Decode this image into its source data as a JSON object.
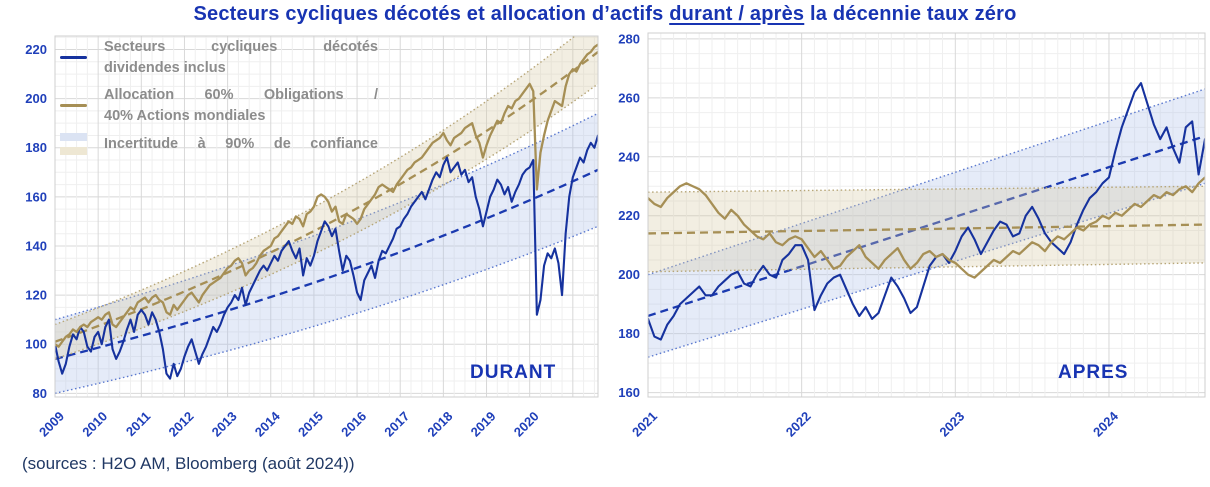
{
  "title": {
    "prefix": "Secteurs cycliques décotés et allocation d’actifs ",
    "underlined": "durant / après",
    "suffix": " la décennie taux zéro"
  },
  "source": "(sources : H2O AM, Bloomberg (août 2024))",
  "colors": {
    "accent_blue": "#1834b2",
    "series_blue": "#16329e",
    "series_gold": "#a68f55",
    "band_blue_fill": "rgba(170,188,232,0.30)",
    "band_blue_edge": "#5b79cf",
    "band_gold_fill": "rgba(216,202,166,0.32)",
    "band_gold_edge": "#b7a678",
    "legend_text": "#8c8c8c",
    "source_text": "#203864"
  },
  "legend": {
    "items": [
      {
        "marker": "line",
        "color": "#16329e",
        "line1": "Secteurs cycliques décotés",
        "line2": "dividendes inclus"
      },
      {
        "marker": "line",
        "color": "#a68f55",
        "line1": "Allocation 60% Obligations /",
        "line2": "40% Actions mondiales"
      },
      {
        "marker": "bands",
        "colors": [
          "#dbe3f3",
          "#eee7d3"
        ],
        "line1": "Incertitude à 90% de confiance",
        "line2": ""
      }
    ]
  },
  "chart_data": [
    {
      "type": "line",
      "panel_label": "DURANT",
      "x_start_year": 2009,
      "points_per_year": 12,
      "minor_x_step": 3,
      "minor_y_step": 5,
      "xticks": [
        2009,
        2010,
        2011,
        2012,
        2013,
        2014,
        2015,
        2016,
        2017,
        2018,
        2019,
        2020
      ],
      "yticks": [
        80,
        100,
        120,
        140,
        160,
        180,
        200,
        220
      ],
      "ylim": [
        78.5,
        225.5
      ],
      "series": [
        {
          "name": "Secteurs cycliques décotés dividendes inclus",
          "color": "#16329e",
          "width": 2.1,
          "values": [
            100,
            93,
            88,
            92,
            99,
            104,
            102,
            107,
            105,
            99,
            97,
            103,
            105,
            100,
            107,
            110,
            98,
            94,
            97,
            101,
            106,
            110,
            105,
            112,
            114,
            112,
            108,
            113,
            110,
            105,
            98,
            88,
            86,
            92,
            87,
            90,
            95,
            99,
            102,
            97,
            92,
            96,
            99,
            103,
            107,
            105,
            108,
            112,
            115,
            117,
            120,
            118,
            123,
            116,
            121,
            124,
            127,
            130,
            132,
            130,
            133,
            136,
            134,
            138,
            140,
            142,
            138,
            135,
            139,
            128,
            135,
            132,
            136,
            142,
            146,
            150,
            148,
            144,
            147,
            138,
            130,
            136,
            134,
            128,
            121,
            118,
            126,
            129,
            132,
            127,
            134,
            138,
            137,
            140,
            143,
            147,
            148,
            151,
            153,
            156,
            158,
            160,
            162,
            159,
            163,
            167,
            170,
            168,
            173,
            176,
            170,
            172,
            174,
            169,
            171,
            166,
            168,
            160,
            155,
            148,
            154,
            160,
            163,
            167,
            165,
            161,
            164,
            158,
            162,
            165,
            169,
            171,
            172,
            175,
            112,
            118,
            132,
            137,
            135,
            139,
            133,
            120,
            145,
            160,
            168,
            172,
            176,
            174,
            179,
            182,
            180,
            185
          ]
        },
        {
          "name": "Allocation 60% Obligations / 40% Actions mondiales",
          "color": "#a68f55",
          "width": 2.3,
          "values": [
            100,
            99,
            101,
            103,
            104,
            106,
            105,
            107,
            108,
            107,
            109,
            110,
            111,
            110,
            112,
            113,
            108,
            107,
            109,
            111,
            113,
            115,
            114,
            117,
            118,
            119,
            117,
            119,
            120,
            118,
            117,
            113,
            112,
            116,
            114,
            116,
            118,
            120,
            121,
            119,
            117,
            120,
            122,
            124,
            125,
            126,
            127,
            129,
            131,
            132,
            134,
            135,
            133,
            128,
            130,
            131,
            133,
            136,
            138,
            139,
            140,
            143,
            144,
            146,
            148,
            150,
            149,
            152,
            151,
            148,
            153,
            154,
            156,
            160,
            161,
            160,
            158,
            154,
            156,
            150,
            149,
            153,
            152,
            151,
            149,
            151,
            155,
            157,
            159,
            161,
            164,
            165,
            164,
            163,
            162,
            165,
            167,
            169,
            171,
            172,
            174,
            175,
            176,
            178,
            180,
            182,
            183,
            184,
            186,
            183,
            181,
            184,
            185,
            186,
            188,
            189,
            190,
            185,
            182,
            176,
            181,
            185,
            188,
            191,
            190,
            194,
            197,
            196,
            199,
            200,
            202,
            204,
            206,
            203,
            163,
            178,
            185,
            191,
            195,
            199,
            198,
            197,
            205,
            210,
            212,
            211,
            214,
            216,
            218,
            219,
            221,
            222
          ]
        }
      ],
      "bands": [
        {
          "name": "incertitude-90-secteurs",
          "interp": "exp",
          "fill": "rgba(170,188,232,0.30)",
          "edge": "#5b79cf",
          "center_color": "#1b3ab0",
          "center": [
            94,
            171
          ],
          "upper": [
            110,
            194
          ],
          "lower": [
            80,
            148
          ]
        },
        {
          "name": "incertitude-90-allocation",
          "interp": "exp",
          "fill": "rgba(216,202,166,0.32)",
          "edge": "#b7a678",
          "center_color": "#a68f55",
          "center": [
            101,
            219
          ],
          "upper": [
            108,
            233
          ],
          "lower": [
            94,
            206
          ]
        }
      ]
    },
    {
      "type": "line",
      "panel_label": "APRES",
      "x_start_year": 2021,
      "points_per_year": 24,
      "minor_x_step": 2,
      "minor_y_step": 5,
      "xticks": [
        2021,
        2022,
        2023,
        2024
      ],
      "yticks": [
        160,
        180,
        200,
        220,
        240,
        260,
        280
      ],
      "ylim": [
        158.5,
        282
      ],
      "series": [
        {
          "name": "Secteurs cycliques décotés dividendes inclus",
          "color": "#16329e",
          "width": 2.1,
          "values": [
            185,
            179,
            178,
            183,
            186,
            190,
            192,
            194,
            196,
            193,
            193,
            196,
            198,
            200,
            201,
            197,
            196,
            200,
            203,
            200,
            199,
            205,
            207,
            210,
            210,
            205,
            188,
            193,
            197,
            199,
            200,
            195,
            190,
            186,
            189,
            185,
            187,
            193,
            199,
            196,
            192,
            187,
            189,
            196,
            203,
            206,
            207,
            204,
            208,
            213,
            216,
            212,
            207,
            211,
            215,
            218,
            217,
            213,
            214,
            220,
            223,
            219,
            214,
            211,
            209,
            207,
            211,
            217,
            222,
            226,
            228,
            231,
            233,
            242,
            250,
            256,
            262,
            265,
            258,
            251,
            246,
            250,
            243,
            238,
            250,
            252,
            234,
            246
          ]
        },
        {
          "name": "Allocation 60% Obligations / 40% Actions mondiales",
          "color": "#a68f55",
          "width": 2.3,
          "values": [
            226,
            224,
            223,
            226,
            228,
            230,
            231,
            230,
            229,
            227,
            224,
            221,
            219,
            222,
            220,
            217,
            215,
            213,
            212,
            214,
            211,
            210,
            212,
            213,
            212,
            209,
            206,
            208,
            205,
            202,
            203,
            206,
            208,
            210,
            206,
            204,
            202,
            205,
            207,
            209,
            205,
            202,
            204,
            207,
            208,
            206,
            207,
            205,
            204,
            202,
            200,
            199,
            201,
            203,
            205,
            204,
            206,
            208,
            207,
            209,
            211,
            210,
            208,
            211,
            213,
            212,
            214,
            216,
            215,
            217,
            218,
            220,
            219,
            221,
            220,
            222,
            224,
            223,
            225,
            227,
            226,
            228,
            227,
            229,
            230,
            228,
            231,
            233
          ]
        }
      ],
      "bands": [
        {
          "name": "incertitude-90-secteurs",
          "interp": "lin",
          "fill": "rgba(170,188,232,0.30)",
          "edge": "#5b79cf",
          "center_color": "#1b3ab0",
          "center": [
            186,
            247
          ],
          "upper": [
            200,
            263
          ],
          "lower": [
            172,
            231
          ]
        },
        {
          "name": "incertitude-90-allocation",
          "interp": "lin",
          "fill": "rgba(216,202,166,0.32)",
          "edge": "#b7a678",
          "center_color": "#a68f55",
          "center": [
            214,
            217
          ],
          "upper": [
            228,
            230
          ],
          "lower": [
            201,
            204
          ]
        }
      ]
    }
  ]
}
